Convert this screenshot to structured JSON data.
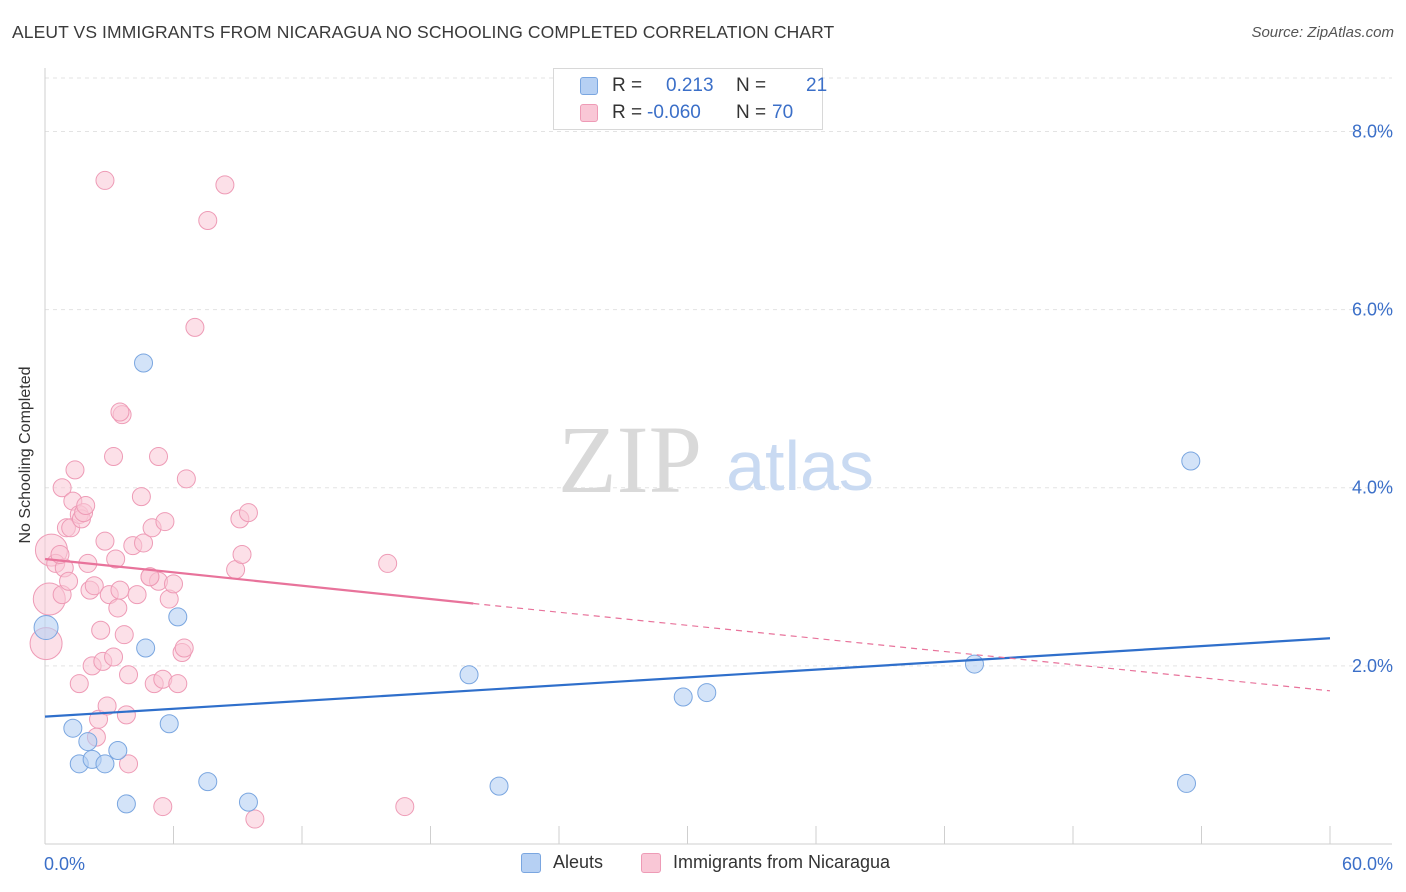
{
  "header": {
    "title": "ALEUT VS IMMIGRANTS FROM NICARAGUA NO SCHOOLING COMPLETED CORRELATION CHART",
    "source": "Source: ZipAtlas.com"
  },
  "watermark": {
    "zip": "ZIP",
    "atlas": "atlas"
  },
  "stats_legend": {
    "rows": [
      {
        "r_label": "R =",
        "r_value": "0.213",
        "n_label": "N =",
        "n_value": "21",
        "swatch_fill": "#b6d0f3",
        "swatch_stroke": "#7aa6e0"
      },
      {
        "r_label": "R =",
        "r_value": "-0.060",
        "n_label": "N =",
        "n_value": "70",
        "swatch_fill": "#f9c7d6",
        "swatch_stroke": "#ee9bb6"
      }
    ]
  },
  "bottom_legend": {
    "series_a": "Aleuts",
    "series_b": "Immigrants from Nicaragua"
  },
  "chart_data": {
    "type": "scatter",
    "title": "ALEUT VS IMMIGRANTS FROM NICARAGUA NO SCHOOLING COMPLETED CORRELATION CHART",
    "xlabel": "",
    "ylabel": "No Schooling Completed",
    "xlim": [
      0,
      60
    ],
    "ylim": [
      0,
      8.6
    ],
    "x_tick_labels": [
      {
        "value": 0,
        "label": "0.0%"
      },
      {
        "value": 60,
        "label": "60.0%"
      }
    ],
    "y_tick_labels": [
      {
        "value": 2,
        "label": "2.0%"
      },
      {
        "value": 4,
        "label": "4.0%"
      },
      {
        "value": 6,
        "label": "6.0%"
      },
      {
        "value": 8,
        "label": "8.0%"
      }
    ],
    "x_minor_ticks": [
      0,
      6,
      12,
      18,
      24,
      30,
      36,
      42,
      48,
      54,
      60
    ],
    "grid": "horizontal dashed",
    "colors": {
      "aleuts": "#7aa6e0",
      "aleuts_fill": "#b6d0f3",
      "aleuts_line": "#2f6fcb",
      "nicaragua": "#ee9bb6",
      "nicaragua_fill": "#f9c7d6",
      "nicaragua_line": "#e8739b",
      "axis": "#3b6fc8"
    },
    "series": [
      {
        "name": "Aleuts",
        "r": 0.213,
        "n": 21,
        "points": [
          [
            0.05,
            2.43
          ],
          [
            4.6,
            5.4
          ],
          [
            1.3,
            1.3
          ],
          [
            1.6,
            0.9
          ],
          [
            2.0,
            1.15
          ],
          [
            2.2,
            0.95
          ],
          [
            2.8,
            0.9
          ],
          [
            3.4,
            1.05
          ],
          [
            3.8,
            0.45
          ],
          [
            4.7,
            2.2
          ],
          [
            6.2,
            2.55
          ],
          [
            5.8,
            1.35
          ],
          [
            7.6,
            0.7
          ],
          [
            9.5,
            0.47
          ],
          [
            19.8,
            1.9
          ],
          [
            21.2,
            0.65
          ],
          [
            29.8,
            1.65
          ],
          [
            30.9,
            1.7
          ],
          [
            43.4,
            2.02
          ],
          [
            53.5,
            4.3
          ],
          [
            53.3,
            0.68
          ]
        ],
        "trend": {
          "x0": 0,
          "y0": 1.43,
          "x1": 60,
          "y1": 2.31
        }
      },
      {
        "name": "Immigrants from Nicaragua",
        "r": -0.06,
        "n": 70,
        "points": [
          [
            0.05,
            2.25
          ],
          [
            0.2,
            2.75
          ],
          [
            0.3,
            3.3
          ],
          [
            0.5,
            3.15
          ],
          [
            0.8,
            2.8
          ],
          [
            0.9,
            3.1
          ],
          [
            0.7,
            3.25
          ],
          [
            0.8,
            4.0
          ],
          [
            1.0,
            3.55
          ],
          [
            1.1,
            2.95
          ],
          [
            1.2,
            3.55
          ],
          [
            1.3,
            3.85
          ],
          [
            1.4,
            4.2
          ],
          [
            1.6,
            3.7
          ],
          [
            1.7,
            3.65
          ],
          [
            1.8,
            3.72
          ],
          [
            1.9,
            3.8
          ],
          [
            2.0,
            3.15
          ],
          [
            2.1,
            2.85
          ],
          [
            2.2,
            2.0
          ],
          [
            2.3,
            2.9
          ],
          [
            2.5,
            1.4
          ],
          [
            2.6,
            2.4
          ],
          [
            2.7,
            2.05
          ],
          [
            2.8,
            3.4
          ],
          [
            2.9,
            1.55
          ],
          [
            3.0,
            2.8
          ],
          [
            3.2,
            2.1
          ],
          [
            3.3,
            3.2
          ],
          [
            3.4,
            2.65
          ],
          [
            3.5,
            2.85
          ],
          [
            3.7,
            2.35
          ],
          [
            3.8,
            1.45
          ],
          [
            3.9,
            1.9
          ],
          [
            2.4,
            1.2
          ],
          [
            4.1,
            3.35
          ],
          [
            4.3,
            2.8
          ],
          [
            4.5,
            3.9
          ],
          [
            4.6,
            3.38
          ],
          [
            4.9,
            3.0
          ],
          [
            5.0,
            3.55
          ],
          [
            5.1,
            1.8
          ],
          [
            5.3,
            2.95
          ],
          [
            5.5,
            1.85
          ],
          [
            5.6,
            3.62
          ],
          [
            5.8,
            2.75
          ],
          [
            6.0,
            2.92
          ],
          [
            6.2,
            1.8
          ],
          [
            6.4,
            2.15
          ],
          [
            6.5,
            2.2
          ],
          [
            6.6,
            4.1
          ],
          [
            5.3,
            4.35
          ],
          [
            3.2,
            4.35
          ],
          [
            3.6,
            4.82
          ],
          [
            3.5,
            4.85
          ],
          [
            2.8,
            7.45
          ],
          [
            7.0,
            5.8
          ],
          [
            7.6,
            7.0
          ],
          [
            8.4,
            7.4
          ],
          [
            8.9,
            3.08
          ],
          [
            9.2,
            3.25
          ],
          [
            9.1,
            3.65
          ],
          [
            9.5,
            3.72
          ],
          [
            16.0,
            3.15
          ],
          [
            16.8,
            0.42
          ],
          [
            5.5,
            0.42
          ],
          [
            9.8,
            0.28
          ],
          [
            3.9,
            0.9
          ],
          [
            4.9,
            3.0
          ],
          [
            1.6,
            1.8
          ]
        ],
        "trend_solid": {
          "x0": 0,
          "y0": 3.2,
          "x1": 20,
          "y1": 2.7
        },
        "trend_dashed": {
          "x0": 20,
          "y0": 2.7,
          "x1": 60,
          "y1": 1.72
        }
      }
    ]
  }
}
